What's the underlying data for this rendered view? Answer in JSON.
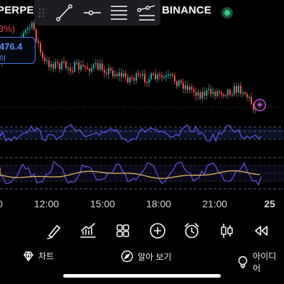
{
  "header": {
    "symbol_left": "PERPE",
    "exchange": "BINANCE",
    "change_pct": "3%)"
  },
  "price_tag": {
    "value": "476.4",
    "sub": "이"
  },
  "draw_toolbar": {
    "tools": [
      "trend-line-icon",
      "horizontal-ray-icon",
      "parallel-channel-icon",
      "path-icon"
    ]
  },
  "time_axis": {
    "labels": [
      "0",
      "12:00",
      "15:00",
      "18:00",
      "21:00",
      "25"
    ]
  },
  "bottom_toolbar": {
    "tools": [
      "brush-icon",
      "indicators-icon",
      "layout-grid-icon",
      "add-icon",
      "alarm-icon",
      "candles-icon",
      "rewind-icon"
    ]
  },
  "bottom_nav": {
    "chart_label": "차트",
    "explore_label": "알아 보기",
    "ideas_label": "아이디어"
  },
  "colors": {
    "up": "#26a69a",
    "down": "#ef5350",
    "indicator": "#6a5cff",
    "signal": "#e6b85c",
    "alert": "#c04fd0"
  }
}
